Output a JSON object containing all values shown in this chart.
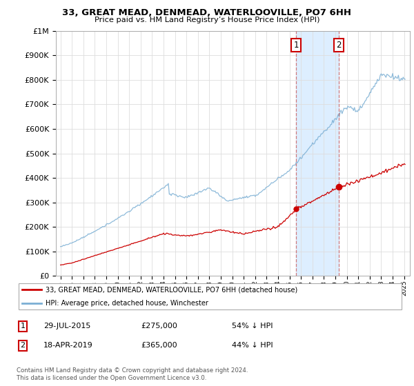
{
  "title": "33, GREAT MEAD, DENMEAD, WATERLOOVILLE, PO7 6HH",
  "subtitle": "Price paid vs. HM Land Registry’s House Price Index (HPI)",
  "sale1_date": 2015.57,
  "sale1_price": 275000,
  "sale2_date": 2019.29,
  "sale2_price": 365000,
  "red_color": "#cc0000",
  "blue_color": "#7bafd4",
  "shade_color": "#ddeeff",
  "legend_line1": "33, GREAT MEAD, DENMEAD, WATERLOOVILLE, PO7 6HH (detached house)",
  "legend_line2": "HPI: Average price, detached house, Winchester",
  "footer1": "Contains HM Land Registry data © Crown copyright and database right 2024.",
  "footer2": "This data is licensed under the Open Government Licence v3.0.",
  "ylim": [
    0,
    1000000
  ],
  "xlim_start": 1994.6,
  "xlim_end": 2025.5
}
